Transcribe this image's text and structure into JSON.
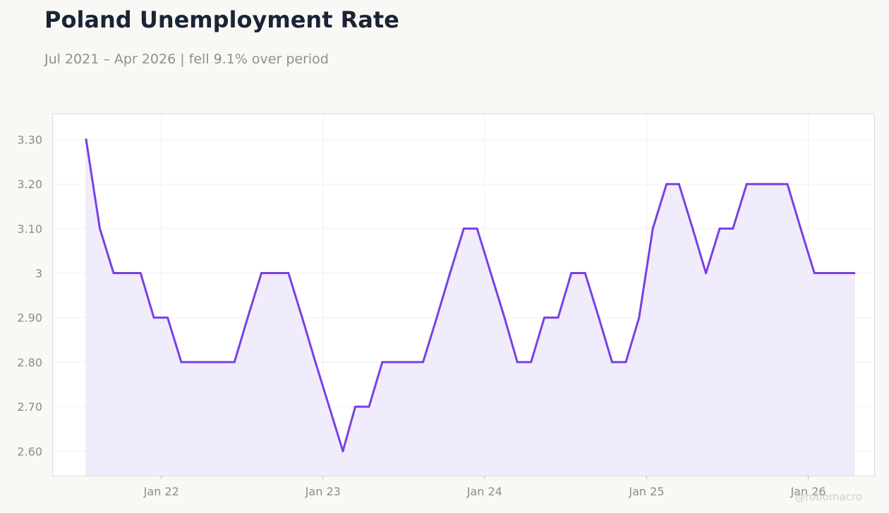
{
  "title": "Poland Unemployment Rate",
  "subtitle": "Jul 2021 – Apr 2026 | fell 9.1% over period",
  "watermark": "@robomacro",
  "colors": {
    "line": "#7b3fe4",
    "area": "#f1ecfb",
    "background": "#f9f8f5",
    "plot_background": "#ffffff",
    "grid": "#f0f0f0",
    "title": "#1b2436",
    "muted_text": "#8c8c8c"
  },
  "chart_data": {
    "type": "area",
    "title": "Poland Unemployment Rate",
    "subtitle": "Jul 2021 – Apr 2026 | fell 9.1% over period",
    "xlabel": "",
    "ylabel": "",
    "grid": true,
    "legend": "none",
    "ylim": [
      2.545,
      3.357
    ],
    "xlim": [
      "2021-05-01",
      "2026-05-30"
    ],
    "y_ticks": [
      {
        "value": 2.6,
        "label": "2.60"
      },
      {
        "value": 2.7,
        "label": "2.70"
      },
      {
        "value": 2.8,
        "label": "2.80"
      },
      {
        "value": 2.9,
        "label": "2.90"
      },
      {
        "value": 3.0,
        "label": "3"
      },
      {
        "value": 3.1,
        "label": "3.10"
      },
      {
        "value": 3.2,
        "label": "3.20"
      },
      {
        "value": 3.3,
        "label": "3.30"
      }
    ],
    "x_ticks": [
      {
        "value": "2022-01-01",
        "label": "Jan 22"
      },
      {
        "value": "2023-01-01",
        "label": "Jan 23"
      },
      {
        "value": "2024-01-01",
        "label": "Jan 24"
      },
      {
        "value": "2025-01-01",
        "label": "Jan 25"
      },
      {
        "value": "2026-01-01",
        "label": "Jan 26"
      }
    ],
    "x": [
      "2021-07",
      "2021-08",
      "2021-09",
      "2021-10",
      "2021-11",
      "2021-12",
      "2022-01",
      "2022-02",
      "2022-03",
      "2022-04",
      "2022-05",
      "2022-06",
      "2022-07",
      "2022-08",
      "2022-09",
      "2022-10",
      "2022-11",
      "2022-12",
      "2023-01",
      "2023-02",
      "2023-03",
      "2023-04",
      "2023-05",
      "2023-06",
      "2023-07",
      "2023-08",
      "2023-09",
      "2023-10",
      "2023-11",
      "2023-12",
      "2024-01",
      "2024-02",
      "2024-03",
      "2024-04",
      "2024-05",
      "2024-06",
      "2024-07",
      "2024-08",
      "2024-09",
      "2024-10",
      "2024-11",
      "2024-12",
      "2025-01",
      "2025-02",
      "2025-03",
      "2025-04",
      "2025-05",
      "2025-06",
      "2025-07",
      "2025-08",
      "2025-09",
      "2025-10",
      "2025-11",
      "2025-12",
      "2026-01",
      "2026-02",
      "2026-03",
      "2026-04"
    ],
    "series": [
      {
        "values": [
          3.3,
          3.1,
          3.0,
          3.0,
          3.0,
          2.9,
          2.9,
          2.8,
          2.8,
          2.8,
          2.8,
          2.8,
          2.9,
          3.0,
          3.0,
          3.0,
          2.9,
          2.8,
          2.7,
          2.6,
          2.7,
          2.7,
          2.8,
          2.8,
          2.8,
          2.8,
          2.9,
          3.0,
          3.1,
          3.1,
          3.0,
          2.9,
          2.8,
          2.8,
          2.9,
          2.9,
          3.0,
          3.0,
          2.9,
          2.8,
          2.8,
          2.9,
          3.1,
          3.2,
          3.2,
          3.1,
          3.0,
          3.1,
          3.1,
          3.2,
          3.2,
          3.2,
          3.2,
          3.1,
          3.0,
          3.0,
          3.0,
          3.0
        ]
      }
    ]
  }
}
